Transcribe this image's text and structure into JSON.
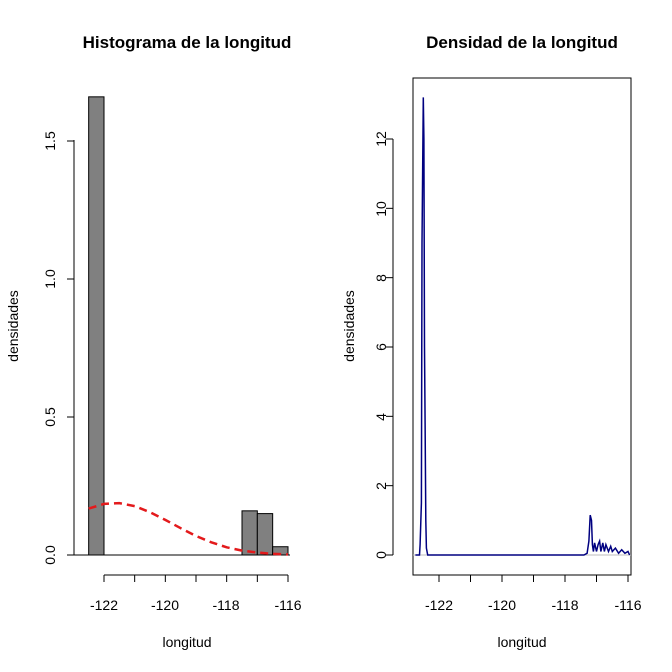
{
  "chart_data": [
    {
      "type": "bar",
      "title": "Histograma de la longitud",
      "xlabel": "longitud",
      "ylabel": "densidades",
      "xlim": [
        -122.6,
        -115.9
      ],
      "ylim": [
        0,
        1.7
      ],
      "xticks": [
        "-122",
        "-120",
        "-118",
        "-116"
      ],
      "yticks": [
        "0.0",
        "0.5",
        "1.0",
        "1.5"
      ],
      "bar_color": "#808080",
      "bins": [
        {
          "from": -122.5,
          "to": -122.0,
          "value": 1.66
        },
        {
          "from": -117.5,
          "to": -117.0,
          "value": 0.16
        },
        {
          "from": -117.0,
          "to": -116.5,
          "value": 0.15
        },
        {
          "from": -116.5,
          "to": -116.0,
          "value": 0.03
        }
      ],
      "curve": {
        "color": "#e31a1c",
        "style": "dashed",
        "x": [
          -122.5,
          -122.0,
          -121.5,
          -121.0,
          -120.5,
          -120.0,
          -119.5,
          -119.0,
          -118.5,
          -118.0,
          -117.5,
          -117.0,
          -116.5,
          -116.0
        ],
        "y": [
          0.168,
          0.185,
          0.188,
          0.177,
          0.155,
          0.127,
          0.097,
          0.069,
          0.046,
          0.028,
          0.016,
          0.009,
          0.004,
          0.002
        ]
      }
    },
    {
      "type": "line",
      "title": "Densidad de la longitud",
      "xlabel": "longitud",
      "ylabel": "densidades",
      "xlim": [
        -122.8,
        -115.9
      ],
      "ylim": [
        -0.5,
        13.4
      ],
      "xticks": [
        "-122",
        "-120",
        "-118",
        "-116"
      ],
      "yticks": [
        "0",
        "2",
        "4",
        "6",
        "8",
        "10",
        "12"
      ],
      "line_color": "#000080",
      "baseline_color": "#bebebe",
      "x": [
        -122.75,
        -122.62,
        -122.6,
        -122.56,
        -122.54,
        -122.5,
        -122.48,
        -122.46,
        -122.44,
        -122.42,
        -122.4,
        -122.36,
        -122.3,
        -122.0,
        -120.0,
        -117.4,
        -117.3,
        -117.24,
        -117.2,
        -117.16,
        -117.13,
        -117.1,
        -117.06,
        -117.0,
        -116.95,
        -116.9,
        -116.86,
        -116.8,
        -116.75,
        -116.7,
        -116.62,
        -116.55,
        -116.5,
        -116.4,
        -116.3,
        -116.2,
        -116.1,
        -116.0,
        -115.95
      ],
      "y": [
        0.0,
        0.0,
        0.3,
        1.5,
        9.0,
        13.2,
        12.0,
        6.0,
        3.8,
        1.0,
        0.2,
        0.0,
        0.0,
        0.0,
        0.0,
        0.0,
        0.05,
        0.4,
        1.15,
        1.0,
        0.3,
        0.1,
        0.35,
        0.1,
        0.3,
        0.4,
        0.1,
        0.35,
        0.1,
        0.3,
        0.1,
        0.25,
        0.1,
        0.2,
        0.05,
        0.15,
        0.05,
        0.1,
        0.0
      ]
    }
  ]
}
